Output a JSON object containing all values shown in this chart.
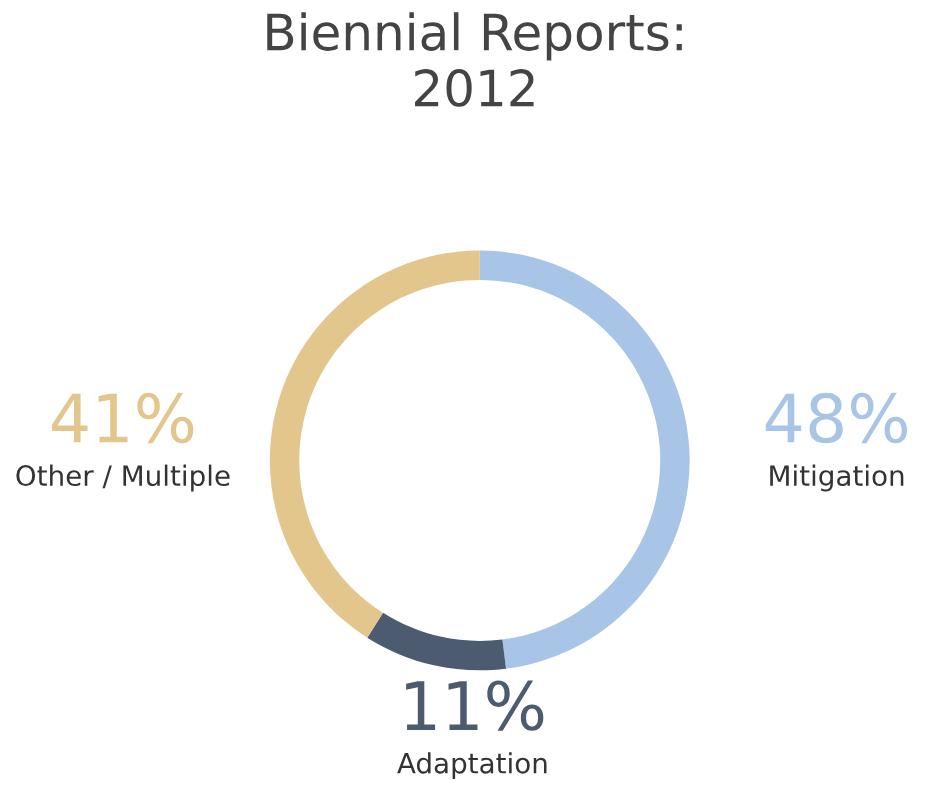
{
  "chart_data": {
    "type": "donut",
    "title": "Biennial Reports:\n2012",
    "categories": [
      "Mitigation",
      "Adaptation",
      "Other / Multiple"
    ],
    "values": [
      48,
      11,
      41
    ],
    "colors": [
      "#a8c4e6",
      "#4c5b70",
      "#e3c68c"
    ],
    "value_labels": [
      "48%",
      "11%",
      "41%"
    ]
  }
}
